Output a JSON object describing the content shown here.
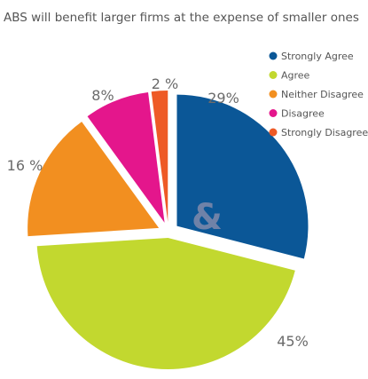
{
  "chart_data": {
    "type": "pie",
    "title": "ABS will benefit larger firms at the expense of smaller ones",
    "categories": [
      "Strongly Agree",
      "Agree",
      "Neither Disagree",
      "Disagree",
      "Strongly Disagree"
    ],
    "values": [
      29,
      45,
      16,
      8,
      2
    ],
    "value_labels": [
      "29%",
      "45%",
      "16 %",
      "8%",
      "2 %"
    ],
    "colors": [
      "#0b5797",
      "#c2d82f",
      "#f28f20",
      "#e4168c",
      "#ee5a26"
    ],
    "legend_position": "top-right",
    "exploded": true
  },
  "watermark": {
    "text": "&"
  }
}
